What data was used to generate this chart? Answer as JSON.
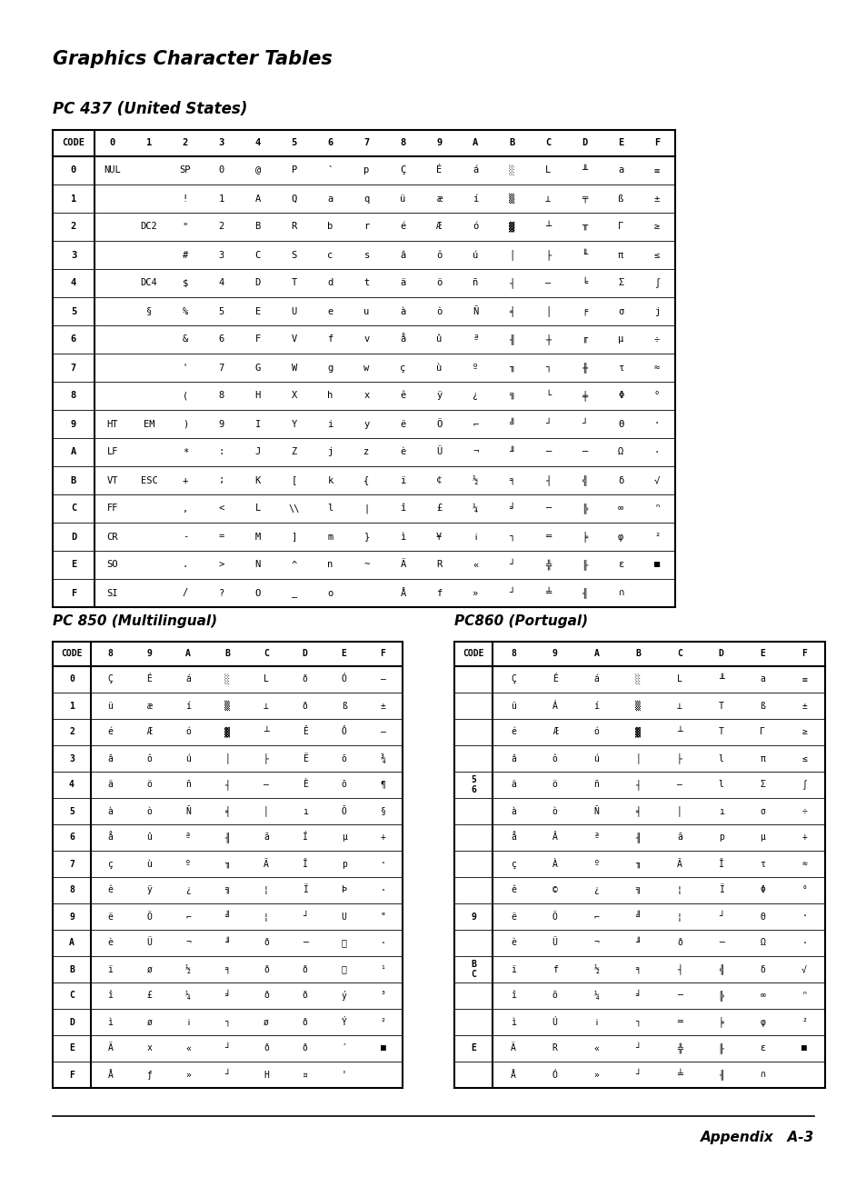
{
  "title": "Graphics Character Tables",
  "subtitle1": "PC 437 (United States)",
  "subtitle2": "PC 850 (Multilingual)",
  "subtitle3": "PC860 (Portugal)",
  "footer_right": "Appendix   A-3",
  "table437_header": [
    "CODE",
    "0",
    "1",
    "2",
    "3",
    "4",
    "5",
    "6",
    "7",
    "8",
    "9",
    "A",
    "B",
    "C",
    "D",
    "E",
    "F"
  ],
  "table437_rows": [
    [
      "0",
      "NUL",
      "",
      "SP",
      "0",
      "@",
      "P",
      "`",
      "p",
      "Ç",
      "É",
      "á",
      "░",
      "L",
      "╨",
      "a",
      "≡"
    ],
    [
      "1",
      "",
      "",
      "!",
      "1",
      "A",
      "Q",
      "a",
      "q",
      "ü",
      "æ",
      "í",
      "▒",
      "⊥",
      "╤",
      "ß",
      "±"
    ],
    [
      "2",
      "",
      "DC2",
      "\"",
      "2",
      "B",
      "R",
      "b",
      "r",
      "é",
      "Æ",
      "ó",
      "▓",
      "┴",
      "╥",
      "Γ",
      "≥"
    ],
    [
      "3",
      "",
      "",
      "#",
      "3",
      "C",
      "S",
      "c",
      "s",
      "â",
      "ô",
      "ú",
      "│",
      "├",
      "╙",
      "π",
      "≤"
    ],
    [
      "4",
      "",
      "DC4",
      "$",
      "4",
      "D",
      "T",
      "d",
      "t",
      "ä",
      "ö",
      "ñ",
      "┤",
      "—",
      "╘",
      "Σ",
      "∫"
    ],
    [
      "5",
      "",
      "§",
      "%",
      "5",
      "E",
      "U",
      "e",
      "u",
      "à",
      "ò",
      "Ñ",
      "╡",
      "│",
      "╒",
      "σ",
      "j"
    ],
    [
      "6",
      "",
      "",
      "&",
      "6",
      "F",
      "V",
      "f",
      "v",
      "å",
      "û",
      "ª",
      "╢",
      "┼",
      "╓",
      "µ",
      "÷"
    ],
    [
      "7",
      "",
      "",
      "'",
      "7",
      "G",
      "W",
      "g",
      "w",
      "ç",
      "ù",
      "º",
      "╖",
      "┐",
      "╫",
      "τ",
      "≈"
    ],
    [
      "8",
      "",
      "",
      "(",
      "8",
      "H",
      "X",
      "h",
      "x",
      "ê",
      "ÿ",
      "¿",
      "╗",
      "└",
      "╪",
      "Φ",
      "°"
    ],
    [
      "9",
      "HT",
      "EM",
      ")",
      "9",
      "I",
      "Y",
      "i",
      "y",
      "ë",
      "Ö",
      "⌐",
      "╝",
      "┘",
      "┘",
      "Θ",
      "·"
    ],
    [
      "A",
      "LF",
      "",
      "*",
      ":",
      "J",
      "Z",
      "j",
      "z",
      "è",
      "Ü",
      "¬",
      "╜",
      "─",
      "─",
      "Ω",
      "·"
    ],
    [
      "B",
      "VT",
      "ESC",
      "+",
      ";",
      "K",
      "[",
      "k",
      "{",
      "ï",
      "¢",
      "½",
      "╕",
      "┤",
      "╣",
      "δ",
      "√"
    ],
    [
      "C",
      "FF",
      "",
      ",",
      "<",
      "L",
      "\\\\",
      "l",
      "|",
      "î",
      "£",
      "¼",
      "╛",
      "─",
      "╠",
      "∞",
      "ⁿ"
    ],
    [
      "D",
      "CR",
      "",
      "-",
      "=",
      "M",
      "]",
      "m",
      "}",
      "ì",
      "¥",
      "¡",
      "┐",
      "═",
      "╞",
      "φ",
      "²"
    ],
    [
      "E",
      "SO",
      "",
      ".",
      ">",
      "N",
      "^",
      "n",
      "~",
      "Ä",
      "R",
      "«",
      "┘",
      "╬",
      "╟",
      "ε",
      "■"
    ],
    [
      "F",
      "SI",
      "",
      "/",
      "?",
      "O",
      "_",
      "o",
      "",
      "Å",
      "f",
      "»",
      "┘",
      "╧",
      "╢",
      "∩",
      ""
    ]
  ],
  "table850_header": [
    "CODE",
    "8",
    "9",
    "A",
    "B",
    "C",
    "D",
    "E",
    "F"
  ],
  "table850_rows": [
    [
      "0",
      "Ç",
      "É",
      "á",
      "░",
      "L",
      "ð",
      "Ó",
      "—"
    ],
    [
      "1",
      "ü",
      "æ",
      "í",
      "▒",
      "⊥",
      "ð",
      "ß",
      "±"
    ],
    [
      "2",
      "é",
      "Æ",
      "ó",
      "▓",
      "┴",
      "Ê",
      "Ô",
      "—"
    ],
    [
      "3",
      "â",
      "ô",
      "ú",
      "│",
      "├",
      "Ë",
      "õ",
      "¾"
    ],
    [
      "4",
      "ä",
      "ö",
      "ñ",
      "┤",
      "—",
      "È",
      "õ",
      "¶"
    ],
    [
      "5",
      "à",
      "ò",
      "Ñ",
      "╡",
      "│",
      "ı",
      "Õ",
      "§"
    ],
    [
      "6",
      "å",
      "û",
      "ª",
      "╢",
      "ã",
      "Í",
      "µ",
      "+"
    ],
    [
      "7",
      "ç",
      "ù",
      "º",
      "╖",
      "Ã",
      "Î",
      "p",
      "·"
    ],
    [
      "8",
      "ê",
      "ÿ",
      "¿",
      "╗",
      "¦",
      "Ï",
      "Þ",
      "·"
    ],
    [
      "9",
      "ë",
      "Ö",
      "⌐",
      "╝",
      "¦",
      "┘",
      "U",
      "\""
    ],
    [
      "A",
      "è",
      "Ü",
      "¬",
      "╜",
      "ð",
      "─",
      "\u0000",
      "·"
    ],
    [
      "B",
      "ï",
      "ø",
      "½",
      "╕",
      "ð",
      "ð",
      "\u0000",
      "¹"
    ],
    [
      "C",
      "î",
      "£",
      "¼",
      "╛",
      "ð",
      "ð",
      "ý",
      "³"
    ],
    [
      "D",
      "ì",
      "ø",
      "¡",
      "┐",
      "ø",
      "ð",
      "Ý",
      "²"
    ],
    [
      "E",
      "Ä",
      "x",
      "«",
      "┘",
      "ð",
      "ð",
      "´",
      "■"
    ],
    [
      "F",
      "Å",
      "ƒ",
      "»",
      "┘",
      "H",
      "¤",
      "'",
      ""
    ]
  ],
  "table860_header": [
    "CODE",
    "8",
    "9",
    "A",
    "B",
    "C",
    "D",
    "E",
    "F"
  ],
  "table860_rows": [
    [
      "",
      "Ç",
      "É",
      "á",
      "░",
      "L",
      "╨",
      "a",
      "≡"
    ],
    [
      "",
      "ü",
      "Á",
      "í",
      "▒",
      "⊥",
      "T",
      "ß",
      "±"
    ],
    [
      "",
      "é",
      "Æ",
      "ó",
      "▓",
      "┴",
      "T",
      "Γ",
      "≥"
    ],
    [
      "",
      "â",
      "ô",
      "ú",
      "│",
      "├",
      "l",
      "π",
      "≤"
    ],
    [
      "5\n6",
      "ä",
      "ö",
      "ñ",
      "┤",
      "—",
      "l",
      "Σ",
      "∫"
    ],
    [
      "",
      "à",
      "ò",
      "Ñ",
      "╡",
      "│",
      "ı",
      "σ",
      "÷"
    ],
    [
      "",
      "å",
      "Â",
      "ª",
      "╢",
      "ã",
      "p",
      "µ",
      "+"
    ],
    [
      "",
      "ç",
      "À",
      "º",
      "╖",
      "Ã",
      "Î",
      "τ",
      "≈"
    ],
    [
      "",
      "ê",
      "©",
      "¿",
      "╗",
      "¦",
      "Ï",
      "Φ",
      "°"
    ],
    [
      "9",
      "ë",
      "Ö",
      "⌐",
      "╝",
      "¦",
      "┘",
      "Θ",
      "·"
    ],
    [
      "",
      "è",
      "Ü",
      "¬",
      "╜",
      "ð",
      "─",
      "Ω",
      "·"
    ],
    [
      "B\nC",
      "ï",
      "f",
      "½",
      "╕",
      "┤",
      "╣",
      "δ",
      "√"
    ],
    [
      "",
      "î",
      "õ",
      "¼",
      "╛",
      "─",
      "╠",
      "∞",
      "ⁿ"
    ],
    [
      "",
      "ì",
      "Ú",
      "¡",
      "┐",
      "═",
      "╞",
      "φ",
      "²"
    ],
    [
      "E",
      "Ä",
      "R",
      "«",
      "┘",
      "╬",
      "╟",
      "ε",
      "■"
    ],
    [
      "",
      "Å",
      "Ó",
      "»",
      "┘",
      "╧",
      "╢",
      "∩",
      ""
    ]
  ]
}
